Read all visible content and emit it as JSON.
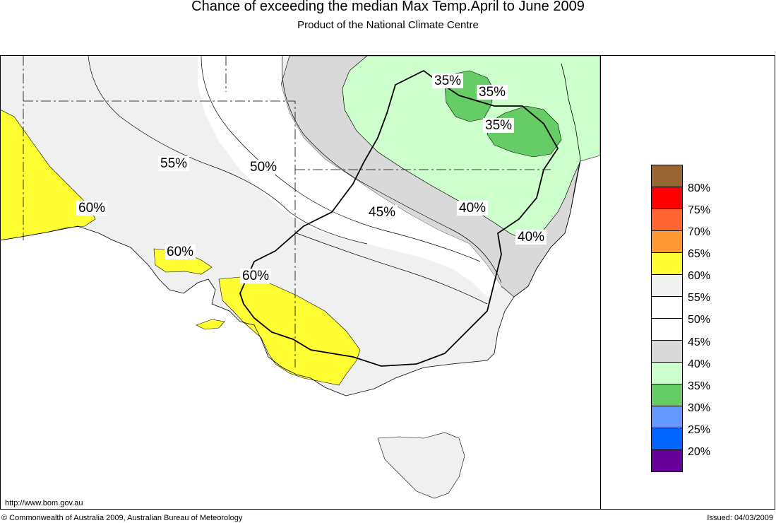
{
  "header": {
    "title": "Chance of exceeding the median Max Temp.April to June 2009",
    "subtitle": "Product of the National Climate Centre"
  },
  "map": {
    "contour_labels": [
      {
        "id": "a",
        "text": "35%"
      },
      {
        "id": "b",
        "text": "35%"
      },
      {
        "id": "c",
        "text": "35%"
      },
      {
        "id": "d",
        "text": "55%"
      },
      {
        "id": "e",
        "text": "50%"
      },
      {
        "id": "f",
        "text": "45%"
      },
      {
        "id": "g",
        "text": "40%"
      },
      {
        "id": "h",
        "text": "40%"
      },
      {
        "id": "i",
        "text": "60%"
      },
      {
        "id": "j",
        "text": "60%"
      },
      {
        "id": "k",
        "text": "60%"
      }
    ]
  },
  "legend": {
    "classes": [
      {
        "label": "80%",
        "color": "#996633"
      },
      {
        "label": "75%",
        "color": "#ff0000"
      },
      {
        "label": "70%",
        "color": "#ff6633"
      },
      {
        "label": "65%",
        "color": "#ff9933"
      },
      {
        "label": "60%",
        "color": "#ffff33"
      },
      {
        "label": "55%",
        "color": "#f0f0f0"
      },
      {
        "label": "50%",
        "color": "#ffffff"
      },
      {
        "label": "45%",
        "color": "#ffffff"
      },
      {
        "label": "40%",
        "color": "#d9d9d9"
      },
      {
        "label": "35%",
        "color": "#ccffcc"
      },
      {
        "label": "30%",
        "color": "#66cc66"
      },
      {
        "label": "25%",
        "color": "#6699ff"
      },
      {
        "label": "20%",
        "color": "#0066ff"
      },
      {
        "label": "",
        "color": "#660099"
      }
    ]
  },
  "footer": {
    "url": "http://www.bom.gov.au",
    "copyright": "© Commonwealth of Australia 2009, Australian Bureau of Meteorology",
    "issued": "Issued: 04/03/2009"
  }
}
